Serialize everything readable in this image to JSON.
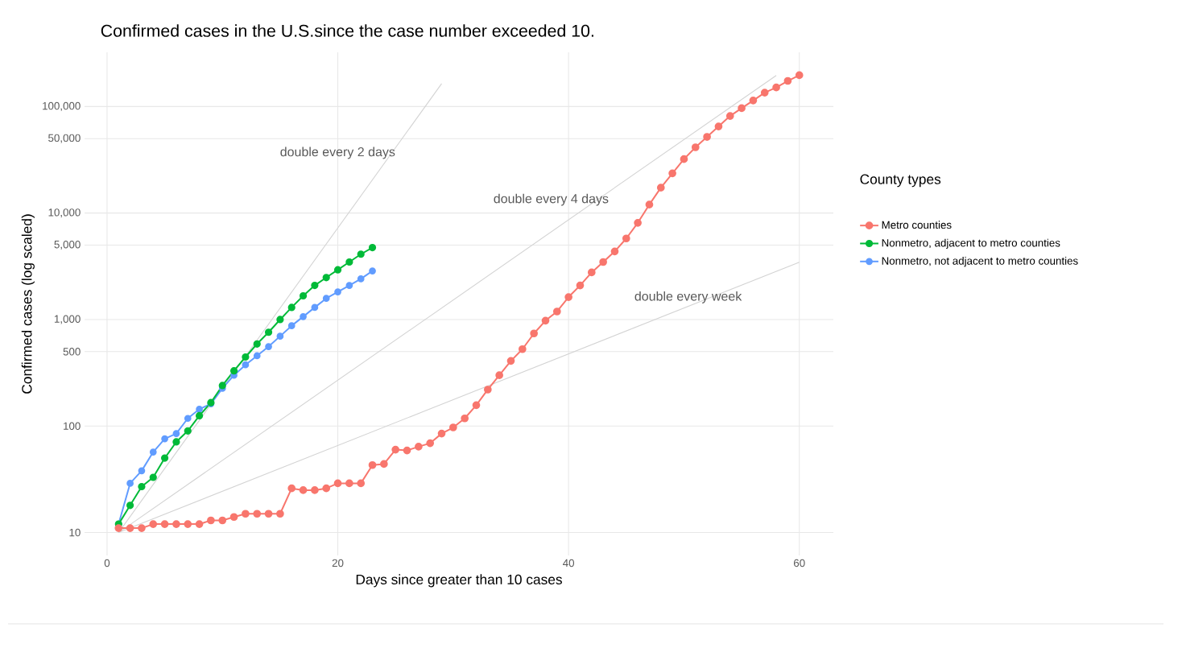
{
  "chart_data": {
    "type": "line",
    "title": "Confirmed cases in the U.S.since the case number exceeded 10.",
    "xlabel": "Days since greater than 10 cases",
    "ylabel": "Confirmed cases (log scaled)",
    "legend_title": "County types",
    "log": "y",
    "grid": true,
    "legend": "right",
    "marker": "circle",
    "xlim": [
      -1.95,
      62.95
    ],
    "ylim": [
      6.1,
      323000
    ],
    "xticks": [
      0,
      20,
      40,
      60
    ],
    "yticks": [
      10,
      100,
      500,
      {
        "value": 1000,
        "label": "1,000"
      },
      {
        "value": 5000,
        "label": "5,000"
      },
      {
        "value": 10000,
        "label": "10,000"
      },
      {
        "value": 50000,
        "label": "50,000"
      },
      {
        "value": 100000,
        "label": "100,000"
      }
    ],
    "series": [
      {
        "name": "Metro counties",
        "color": "#f8766d",
        "x": [
          1,
          2,
          3,
          4,
          5,
          6,
          7,
          8,
          9,
          10,
          11,
          12,
          13,
          14,
          15,
          16,
          17,
          18,
          19,
          20,
          21,
          22,
          23,
          24,
          25,
          26,
          27,
          28,
          29,
          30,
          31,
          32,
          33,
          34,
          35,
          36,
          37,
          38,
          39,
          40,
          41,
          42,
          43,
          44,
          45,
          46,
          47,
          48,
          49,
          50,
          51,
          52,
          53,
          54,
          55,
          56,
          57,
          58,
          59,
          60
        ],
        "values": [
          11,
          11,
          11,
          12,
          12,
          12,
          12,
          12,
          13,
          13,
          14,
          15,
          15,
          15,
          15,
          26,
          25,
          25,
          26,
          29,
          29,
          29,
          43,
          44,
          60,
          59,
          64,
          69,
          85,
          97,
          118,
          157,
          220,
          300,
          409,
          527,
          740,
          977,
          1190,
          1625,
          2090,
          2770,
          3470,
          4360,
          5770,
          8090,
          12000,
          17300,
          23600,
          32100,
          41400,
          51900,
          65000,
          81500,
          96500,
          114000,
          135000,
          151000,
          174000,
          197000
        ]
      },
      {
        "name": "Nonmetro, adjacent to metro counties",
        "color": "#00ba38",
        "x": [
          1,
          2,
          3,
          4,
          5,
          6,
          7,
          8,
          9,
          10,
          11,
          12,
          13,
          14,
          15,
          16,
          17,
          18,
          19,
          20,
          21,
          22,
          23
        ],
        "values": [
          12,
          18,
          27,
          33,
          50,
          71,
          90,
          125,
          166,
          240,
          330,
          445,
          590,
          760,
          1000,
          1300,
          1670,
          2090,
          2480,
          2930,
          3470,
          4110,
          4740
        ]
      },
      {
        "name": "Nonmetro, not adjacent to metro counties",
        "color": "#619cff",
        "x": [
          1,
          2,
          3,
          4,
          5,
          6,
          7,
          8,
          9,
          10,
          11,
          12,
          13,
          14,
          15,
          16,
          17,
          18,
          19,
          20,
          21,
          22,
          23
        ],
        "values": [
          12,
          29,
          38,
          57,
          76,
          85,
          118,
          144,
          162,
          226,
          300,
          376,
          457,
          557,
          698,
          875,
          1065,
          1300,
          1580,
          1820,
          2090,
          2410,
          2860
        ]
      },
      {
        "type": "line",
        "marker": "none",
        "color": "#d3d3d3",
        "x": [
          1,
          29
        ],
        "values": [
          10,
          164000
        ]
      },
      {
        "type": "line",
        "marker": "none",
        "color": "#d3d3d3",
        "x": [
          1,
          58
        ],
        "values": [
          10,
          196000
        ]
      },
      {
        "type": "line",
        "marker": "none",
        "color": "#d3d3d3",
        "x": [
          1,
          60
        ],
        "values": [
          10,
          3450
        ]
      }
    ],
    "annotations": [
      "double every 2 days",
      "double every 4 days",
      "double every week"
    ]
  }
}
